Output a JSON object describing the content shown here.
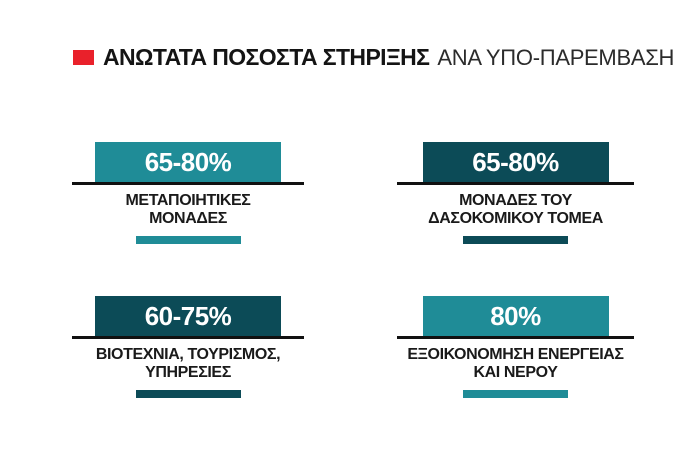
{
  "colors": {
    "teal": "#1F8C97",
    "dark_teal": "#0C4B57",
    "red": "#E9212B",
    "line": "#111111",
    "text": "#1A1A1A",
    "background": "#FFFFFF"
  },
  "header": {
    "title_bold": "ΑΝΩΤΑΤΑ ΠΟΣΟΣΤΑ ΣΤΗΡΙΞΗΣ",
    "title_regular": "ΑΝΑ ΥΠΟ-ΠΑΡΕΜΒΑΣΗ"
  },
  "cards": [
    {
      "value": "65-80%",
      "label_line1": "ΜΕΤΑΠΟΙΗΤΙΚΕΣ",
      "label_line2": "ΜΟΝΑΔΕΣ",
      "color_hex": "#1F8C97"
    },
    {
      "value": "65-80%",
      "label_line1": "ΜΟΝΑΔΕΣ ΤΟΥ",
      "label_line2": "ΔΑΣΟΚΟΜΙΚΟΥ ΤΟΜΕΑ",
      "color_hex": "#0C4B57"
    },
    {
      "value": "60-75%",
      "label_line1": "ΒΙΟΤΕΧΝΙΑ, ΤΟΥΡΙΣΜΟΣ,",
      "label_line2": "ΥΠΗΡΕΣΙΕΣ",
      "color_hex": "#0C4B57"
    },
    {
      "value": "80%",
      "label_line1": "ΕΞΟΙΚΟΝΟΜΗΣΗ ΕΝΕΡΓΕΙΑΣ",
      "label_line2": "ΚΑΙ ΝΕΡΟΥ",
      "color_hex": "#1F8C97"
    }
  ],
  "chart_data": {
    "type": "table",
    "title": "ΑΝΩΤΑΤΑ ΠΟΣΟΣΤΑ ΣΤΗΡΙΞΗΣ ΑΝΑ ΥΠΟ-ΠΑΡΕΜΒΑΣΗ",
    "categories": [
      "ΜΕΤΑΠΟΙΗΤΙΚΕΣ ΜΟΝΑΔΕΣ",
      "ΜΟΝΑΔΕΣ ΤΟΥ ΔΑΣΟΚΟΜΙΚΟΥ ΤΟΜΕΑ",
      "ΒΙΟΤΕΧΝΙΑ, ΤΟΥΡΙΣΜΟΣ, ΥΠΗΡΕΣΙΕΣ",
      "ΕΞΟΙΚΟΝΟΜΗΣΗ ΕΝΕΡΓΕΙΑΣ ΚΑΙ ΝΕΡΟΥ"
    ],
    "values": [
      "65-80%",
      "65-80%",
      "60-75%",
      "80%"
    ],
    "values_numeric": [
      {
        "min": 65,
        "max": 80
      },
      {
        "min": 65,
        "max": 80
      },
      {
        "min": 60,
        "max": 75
      },
      {
        "min": 80,
        "max": 80
      }
    ],
    "unit": "%"
  }
}
